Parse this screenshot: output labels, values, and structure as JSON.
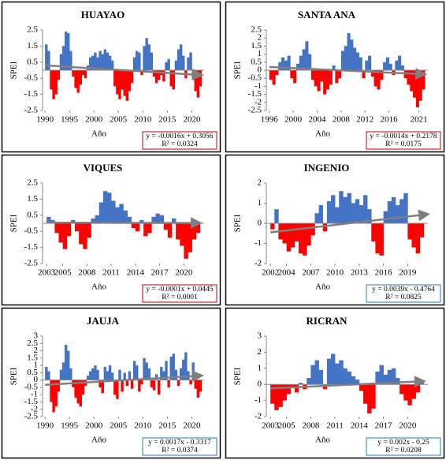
{
  "chart_data": [
    {
      "type": "bar",
      "title": "HUAYAO",
      "x_label": "Año",
      "y_label": "SPEI",
      "equation": "y = -0.0016x + 0.3056",
      "r_squared": "R² = 0.0324",
      "equation_box_color": "#c00000",
      "positive_color": "#4472c4",
      "negative_color": "#ff0000",
      "trend_color": "#7f7f7f",
      "trend_x": [
        1990,
        2022
      ],
      "trend_y": [
        0.3,
        -0.3
      ],
      "xlim": [
        1989.5,
        2022.5
      ],
      "xticks": [
        1990,
        1995,
        2000,
        2005,
        2010,
        2015,
        2020
      ],
      "ylim": [
        -2.5,
        2.5
      ],
      "yticks": [
        2.5,
        1.5,
        0.5,
        -0.5,
        -1.5,
        -2.5
      ],
      "x": [
        1990,
        1990.5,
        1991,
        1991.5,
        1992,
        1992.5,
        1993,
        1993.5,
        1994,
        1994.5,
        1995,
        1995.5,
        1996,
        1996.5,
        1997,
        1997.5,
        1998,
        1998.5,
        1999,
        1999.5,
        2000,
        2000.5,
        2001,
        2001.5,
        2002,
        2002.5,
        2003,
        2003.5,
        2004,
        2004.5,
        2005,
        2005.5,
        2006,
        2006.5,
        2007,
        2007.5,
        2008,
        2008.5,
        2009,
        2009.5,
        2010,
        2010.5,
        2011,
        2011.5,
        2012,
        2012.5,
        2013,
        2013.5,
        2014,
        2014.5,
        2015,
        2015.5,
        2016,
        2016.5,
        2017,
        2017.5,
        2018,
        2018.5,
        2019,
        2019.5,
        2020,
        2020.5,
        2021,
        2021.5
      ],
      "values": [
        1.6,
        1.2,
        -1.2,
        -1.8,
        -1.5,
        -0.6,
        1.0,
        1.5,
        2.4,
        2.3,
        1.2,
        -0.4,
        -1.1,
        -1.4,
        -0.9,
        -0.3,
        -0.5,
        0.3,
        0.8,
        0.9,
        1.1,
        0.8,
        1.2,
        1.0,
        1.3,
        1.1,
        0.9,
        0.6,
        -1.0,
        -1.5,
        -1.8,
        -1.2,
        -1.6,
        -1.9,
        -1.3,
        -0.8,
        0.8,
        1.2,
        1.1,
        -0.3,
        1.5,
        2.0,
        1.6,
        1.1,
        -0.4,
        -0.8,
        -0.6,
        -0.3,
        -0.7,
        0.5,
        0.7,
        -1.0,
        -1.2,
        0.6,
        1.3,
        1.6,
        0.9,
        -0.5,
        0.8,
        1.1,
        -0.6,
        -1.3,
        -1.7,
        -1.0
      ]
    },
    {
      "type": "bar",
      "title": "SANTA ANA",
      "x_label": "Año",
      "y_label": "SPEI",
      "equation": "y = -0.0014x + 0.2178",
      "r_squared": "R² = 0.0175",
      "equation_box_color": "#c00000",
      "positive_color": "#4472c4",
      "negative_color": "#ff0000",
      "trend_color": "#7f7f7f",
      "trend_x": [
        1996,
        2022
      ],
      "trend_y": [
        0.2,
        -0.25
      ],
      "xlim": [
        1995.5,
        2022.5
      ],
      "xticks": [
        1996,
        2000,
        2004,
        2008,
        2012,
        2016,
        2021
      ],
      "ylim": [
        -2.5,
        2.5
      ],
      "yticks": [
        2.5,
        2,
        1.5,
        1,
        0.5,
        0,
        -0.5,
        -1,
        -1.5,
        -2,
        -2.5
      ],
      "x": [
        1996,
        1996.5,
        1997,
        1997.5,
        1998,
        1998.5,
        1999,
        1999.5,
        2000,
        2000.5,
        2001,
        2001.5,
        2002,
        2002.5,
        2003,
        2003.5,
        2004,
        2004.5,
        2005,
        2005.5,
        2006,
        2006.5,
        2007,
        2007.5,
        2008,
        2008.5,
        2009,
        2009.5,
        2010,
        2010.5,
        2011,
        2011.5,
        2012,
        2012.5,
        2013,
        2013.5,
        2014,
        2014.5,
        2015,
        2015.5,
        2016,
        2016.5,
        2017,
        2017.5,
        2018,
        2018.5,
        2019,
        2019.5,
        2020,
        2020.5,
        2021,
        2021.5
      ],
      "values": [
        -0.6,
        -0.9,
        -0.3,
        0.5,
        0.8,
        0.6,
        0.9,
        -0.5,
        -0.8,
        0.4,
        0.9,
        1.3,
        1.8,
        1.0,
        -0.6,
        -1.0,
        -1.3,
        -0.7,
        -1.5,
        -1.2,
        -0.9,
        0.3,
        -0.8,
        -0.5,
        1.2,
        1.5,
        2.3,
        1.9,
        1.4,
        1.1,
        0.8,
        -0.5,
        0.6,
        0.9,
        -0.4,
        -1.0,
        -1.2,
        -0.6,
        0.5,
        0.8,
        0.4,
        -0.3,
        0.6,
        0.9,
        0.3,
        -0.5,
        -0.9,
        -1.3,
        -1.7,
        -2.3,
        -1.9,
        -1.2
      ]
    },
    {
      "type": "bar",
      "title": "VIQUES",
      "x_label": "Año",
      "y_label": "SPEI",
      "equation": "y = -0.0001x + 0.0445",
      "r_squared": "R² = 0.0001",
      "equation_box_color": "#c00000",
      "positive_color": "#4472c4",
      "negative_color": "#ff0000",
      "trend_color": "#7f7f7f",
      "trend_x": [
        2003,
        2022
      ],
      "trend_y": [
        0.04,
        0.02
      ],
      "xlim": [
        2002.5,
        2022.5
      ],
      "xticks": [
        2003,
        2005,
        2008,
        2011,
        2014,
        2017,
        2020
      ],
      "ylim": [
        -2.5,
        2.5
      ],
      "yticks": [
        2.5,
        1.5,
        0.5,
        -0.5,
        -1.5,
        -2.5
      ],
      "x": [
        2003,
        2003.5,
        2004,
        2004.5,
        2005,
        2005.5,
        2006,
        2006.5,
        2007,
        2007.5,
        2008,
        2008.5,
        2009,
        2009.5,
        2010,
        2010.5,
        2011,
        2011.5,
        2012,
        2012.5,
        2013,
        2013.5,
        2014,
        2014.5,
        2015,
        2015.5,
        2016,
        2016.5,
        2017,
        2017.5,
        2018,
        2018.5,
        2019,
        2019.5,
        2020,
        2020.5,
        2021,
        2021.5
      ],
      "values": [
        0.4,
        0.2,
        -0.6,
        -1.2,
        -1.6,
        -0.8,
        0.2,
        -0.5,
        -1.3,
        -1.6,
        -0.9,
        0.3,
        0.5,
        1.3,
        2.0,
        1.9,
        1.4,
        1.0,
        1.2,
        0.8,
        0.4,
        -0.3,
        -0.5,
        0.2,
        -0.8,
        -0.6,
        0.4,
        0.6,
        0.5,
        -0.4,
        -0.9,
        0.3,
        -1.0,
        -1.4,
        -2.2,
        -1.8,
        -1.0,
        -0.6
      ]
    },
    {
      "type": "bar",
      "title": "INGENIO",
      "x_label": "Año",
      "y_label": "SPEI",
      "equation": "y = 0.0039x - 0.4764",
      "r_squared": "R² = 0.0825",
      "equation_box_color": "#2e75b6",
      "positive_color": "#4472c4",
      "negative_color": "#ff0000",
      "trend_color": "#7f7f7f",
      "trend_x": [
        2002,
        2021.5
      ],
      "trend_y": [
        -0.45,
        0.45
      ],
      "xlim": [
        2001.5,
        2021.5
      ],
      "xticks": [
        2002,
        2004,
        2007,
        2010,
        2013,
        2016,
        2019
      ],
      "ylim": [
        -2,
        2
      ],
      "yticks": [
        2,
        1,
        0,
        -1,
        -2
      ],
      "x": [
        2002,
        2002.5,
        2003,
        2003.5,
        2004,
        2004.5,
        2005,
        2005.5,
        2006,
        2006.5,
        2007,
        2007.5,
        2008,
        2008.5,
        2009,
        2009.5,
        2010,
        2010.5,
        2011,
        2011.5,
        2012,
        2012.5,
        2013,
        2013.5,
        2014,
        2014.5,
        2015,
        2015.5,
        2016,
        2016.5,
        2017,
        2017.5,
        2018,
        2018.5,
        2019,
        2019.5,
        2020,
        2020.5
      ],
      "values": [
        -0.3,
        0.7,
        -0.8,
        -1.0,
        -1.4,
        -1.2,
        -0.9,
        -1.5,
        -1.6,
        -1.1,
        -0.6,
        0.5,
        0.9,
        -0.4,
        1.1,
        1.4,
        0.8,
        1.6,
        1.3,
        1.5,
        1.0,
        1.2,
        0.9,
        1.4,
        0.7,
        -0.9,
        -1.5,
        -1.6,
        0.6,
        1.1,
        1.3,
        0.9,
        1.2,
        1.5,
        -0.8,
        -1.2,
        -1.5,
        -0.7
      ]
    },
    {
      "type": "bar",
      "title": "JAUJA",
      "x_label": "Año",
      "y_label": "SPEI",
      "equation": "y = 0.0017x - 0.3317",
      "r_squared": "R² = 0.0374",
      "equation_box_color": "#2e75b6",
      "positive_color": "#4472c4",
      "negative_color": "#ff0000",
      "trend_color": "#7f7f7f",
      "trend_x": [
        1990,
        2022
      ],
      "trend_y": [
        -0.33,
        0.3
      ],
      "xlim": [
        1989.5,
        2022.5
      ],
      "xticks": [
        1990,
        1995,
        2000,
        2005,
        2010,
        2015,
        2020
      ],
      "ylim": [
        -2.5,
        3
      ],
      "yticks": [
        3,
        2.5,
        2,
        1.5,
        1,
        0.5,
        0,
        -0.5,
        -1,
        -1.5,
        -2,
        -2.5
      ],
      "x": [
        1990,
        1990.5,
        1991,
        1991.5,
        1992,
        1992.5,
        1993,
        1993.5,
        1994,
        1994.5,
        1995,
        1995.5,
        1996,
        1996.5,
        1997,
        1997.5,
        1998,
        1998.5,
        1999,
        1999.5,
        2000,
        2000.5,
        2001,
        2001.5,
        2002,
        2002.5,
        2003,
        2003.5,
        2004,
        2004.5,
        2005,
        2005.5,
        2006,
        2006.5,
        2007,
        2007.5,
        2008,
        2008.5,
        2009,
        2009.5,
        2010,
        2010.5,
        2011,
        2011.5,
        2012,
        2012.5,
        2013,
        2013.5,
        2014,
        2014.5,
        2015,
        2015.5,
        2016,
        2016.5,
        2017,
        2017.5,
        2018,
        2018.5,
        2019,
        2019.5,
        2020,
        2020.5,
        2021,
        2021.5
      ],
      "values": [
        0.9,
        0.6,
        -1.5,
        -2.2,
        -1.8,
        -0.8,
        0.7,
        1.2,
        2.4,
        2.0,
        0.8,
        -0.5,
        -1.2,
        -1.6,
        -1.8,
        -1.0,
        -0.4,
        0.3,
        0.6,
        0.8,
        1.0,
        0.7,
        -0.5,
        -0.9,
        0.9,
        0.6,
        1.0,
        0.5,
        -1.0,
        -1.3,
        0.7,
        -0.8,
        0.5,
        -0.4,
        0.6,
        -0.6,
        1.3,
        1.0,
        -0.8,
        -0.3,
        1.5,
        1.2,
        0.8,
        -0.5,
        -0.7,
        0.4,
        -1.0,
        0.9,
        0.6,
        1.3,
        -0.5,
        1.6,
        1.8,
        0.7,
        -0.4,
        0.8,
        1.4,
        1.9,
        0.6,
        -0.3,
        1.2,
        -0.6,
        -1.2,
        -0.8
      ]
    },
    {
      "type": "bar",
      "title": "RICRAN",
      "x_label": "Año",
      "y_label": "SPEI",
      "equation": "y = 0.002x - 0.25",
      "r_squared": "R² = 0.0208",
      "equation_box_color": "#2e75b6",
      "positive_color": "#4472c4",
      "negative_color": "#ff0000",
      "trend_color": "#7f7f7f",
      "trend_x": [
        2003,
        2022
      ],
      "trend_y": [
        -0.25,
        0.2
      ],
      "xlim": [
        2002.5,
        2022.5
      ],
      "xticks": [
        2003,
        2005,
        2008,
        2011,
        2014,
        2017,
        2020
      ],
      "ylim": [
        -2,
        3
      ],
      "yticks": [
        3,
        2,
        1,
        0,
        -1,
        -2
      ],
      "x": [
        2003,
        2003.5,
        2004,
        2004.5,
        2005,
        2005.5,
        2006,
        2006.5,
        2007,
        2007.5,
        2008,
        2008.5,
        2009,
        2009.5,
        2010,
        2010.5,
        2011,
        2011.5,
        2012,
        2012.5,
        2013,
        2013.5,
        2014,
        2014.5,
        2015,
        2015.5,
        2016,
        2016.5,
        2017,
        2017.5,
        2018,
        2018.5,
        2019,
        2019.5,
        2020,
        2020.5,
        2021,
        2021.5
      ],
      "values": [
        -1.2,
        -1.6,
        -1.4,
        -1.0,
        -0.6,
        -0.2,
        -0.5,
        0.1,
        -0.3,
        0.4,
        1.2,
        1.5,
        0.9,
        -0.3,
        1.6,
        1.9,
        1.3,
        1.5,
        1.0,
        0.8,
        0.5,
        0.3,
        -0.4,
        -1.2,
        -1.8,
        -1.5,
        0.8,
        1.2,
        0.6,
        0.9,
        1.0,
        0.4,
        -0.6,
        -1.0,
        -1.3,
        -0.9,
        -0.5,
        0.2
      ]
    }
  ]
}
